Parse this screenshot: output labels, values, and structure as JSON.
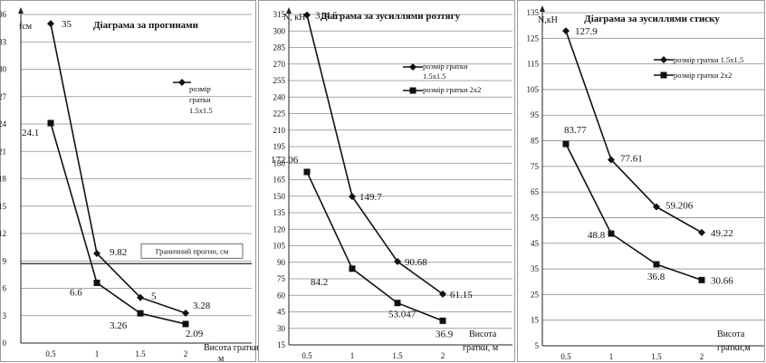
{
  "chart_data": [
    {
      "type": "line",
      "title": "Діаграма за прогинами",
      "ylabel": "fсм",
      "xlabel": "Висота гратки, м",
      "x": [
        0.5,
        1,
        1.5,
        2
      ],
      "x_ticks": [
        "0.5",
        "1",
        "1.5",
        "2"
      ],
      "ylim": [
        0,
        36
      ],
      "y_ticks": [
        0,
        3,
        6,
        9,
        12,
        15,
        18,
        21,
        24,
        27,
        30,
        33,
        36
      ],
      "grid": true,
      "series": [
        {
          "name": "розмір гратки 1.5x1.5",
          "marker": "diamond",
          "values": [
            35,
            9.82,
            5,
            3.28
          ],
          "labels": [
            "35",
            "9.82",
            "5",
            "3.28"
          ]
        },
        {
          "name": "",
          "marker": "square",
          "values": [
            24.1,
            6.6,
            3.26,
            2.09
          ],
          "labels": [
            "24.1",
            "6.6",
            "3.26",
            "2.09"
          ]
        }
      ],
      "reference_line": {
        "value": 8.7,
        "label": "Граничний прогин, см"
      }
    },
    {
      "type": "line",
      "title": "Діаграма за зусиллями розтягу",
      "ylabel": "N, кН",
      "xlabel": "Висота гратки, м",
      "x": [
        0.5,
        1,
        1.5,
        2
      ],
      "x_ticks": [
        "0.5",
        "1",
        "1.5",
        "2"
      ],
      "ylim": [
        15,
        315
      ],
      "y_ticks": [
        15,
        30,
        45,
        60,
        75,
        90,
        105,
        120,
        135,
        150,
        165,
        180,
        195,
        210,
        225,
        240,
        255,
        270,
        285,
        300,
        315
      ],
      "grid": true,
      "series": [
        {
          "name": "розмір гратки 1.5x1.5",
          "marker": "diamond",
          "values": [
            314.5,
            149.7,
            90.68,
            61.15
          ],
          "labels": [
            "314.5",
            "149.7",
            "90.68",
            "61.15"
          ]
        },
        {
          "name": "розмір гратки 2x2",
          "marker": "square",
          "values": [
            172.06,
            84.2,
            53.047,
            36.9
          ],
          "labels": [
            "172.06",
            "84.2",
            "53.047",
            "36.9"
          ]
        }
      ]
    },
    {
      "type": "line",
      "title": "Діаграма за зусиллями стиску",
      "ylabel": "N,кН",
      "xlabel": "Висота гратки,м",
      "x": [
        0.5,
        1,
        1.5,
        2
      ],
      "x_ticks": [
        "0.5",
        "1",
        "1.5",
        "2"
      ],
      "ylim": [
        5,
        135
      ],
      "y_ticks": [
        5,
        15,
        25,
        35,
        45,
        55,
        65,
        75,
        85,
        95,
        105,
        115,
        125,
        135
      ],
      "grid": true,
      "series": [
        {
          "name": "розмір гратки 1.5x1.5",
          "marker": "diamond",
          "values": [
            127.9,
            77.61,
            59.206,
            49.22
          ],
          "labels": [
            "127.9",
            "77.61",
            "59.206",
            "49.22"
          ]
        },
        {
          "name": "розмір гратки 2x2",
          "marker": "square",
          "values": [
            83.77,
            48.8,
            36.8,
            30.66
          ],
          "labels": [
            "83.77",
            "48.8",
            "36.8",
            "30.66"
          ]
        }
      ]
    }
  ]
}
